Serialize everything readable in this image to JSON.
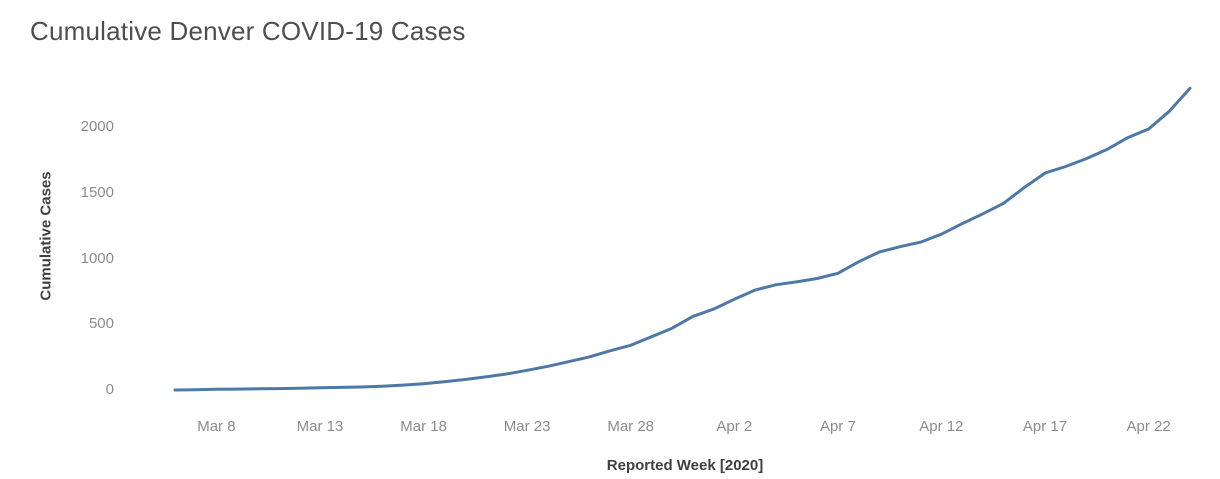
{
  "page": {
    "title": "Cumulative Denver COVID-19 Cases"
  },
  "chart_data": {
    "type": "line",
    "title": "Cumulative Denver COVID-19 Cases",
    "xlabel": "Reported Week [2020]",
    "ylabel": "Cumulative Cases",
    "x": [
      "Mar 6",
      "Mar 7",
      "Mar 8",
      "Mar 9",
      "Mar 10",
      "Mar 11",
      "Mar 12",
      "Mar 13",
      "Mar 14",
      "Mar 15",
      "Mar 16",
      "Mar 17",
      "Mar 18",
      "Mar 19",
      "Mar 20",
      "Mar 21",
      "Mar 22",
      "Mar 23",
      "Mar 24",
      "Mar 25",
      "Mar 26",
      "Mar 27",
      "Mar 28",
      "Mar 29",
      "Mar 30",
      "Mar 31",
      "Apr 1",
      "Apr 2",
      "Apr 3",
      "Apr 4",
      "Apr 5",
      "Apr 6",
      "Apr 7",
      "Apr 8",
      "Apr 9",
      "Apr 10",
      "Apr 11",
      "Apr 12",
      "Apr 13",
      "Apr 14",
      "Apr 15",
      "Apr 16",
      "Apr 17",
      "Apr 18",
      "Apr 19",
      "Apr 20",
      "Apr 21",
      "Apr 22",
      "Apr 23",
      "Apr 24"
    ],
    "values": [
      0,
      2,
      5,
      7,
      9,
      11,
      14,
      17,
      20,
      23,
      28,
      37,
      48,
      62,
      80,
      100,
      122,
      150,
      180,
      215,
      252,
      298,
      340,
      405,
      470,
      560,
      615,
      690,
      760,
      800,
      822,
      848,
      888,
      975,
      1050,
      1090,
      1125,
      1185,
      1265,
      1340,
      1420,
      1540,
      1650,
      1700,
      1760,
      1830,
      1920,
      1985,
      2120,
      2295
    ],
    "x_ticks": [
      "Mar 8",
      "Mar 13",
      "Mar 18",
      "Mar 23",
      "Mar 28",
      "Apr 2",
      "Apr 7",
      "Apr 12",
      "Apr 17",
      "Apr 22"
    ],
    "y_ticks": [
      0,
      500,
      1000,
      1500,
      2000
    ],
    "ylim": [
      0,
      2320
    ],
    "grid": false,
    "legend": "none",
    "line_color": "#4e79a7",
    "colors": {
      "title_text": "#4e4e4e",
      "axis_title_text": "#3f3f3f",
      "tick_label_text": "#8c8c8c",
      "background": "#ffffff"
    }
  }
}
